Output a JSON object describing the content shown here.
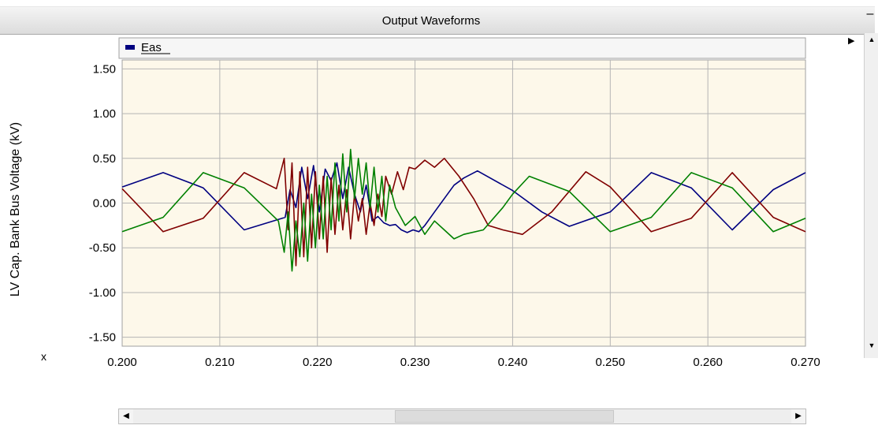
{
  "window": {
    "title": "Output Waveforms",
    "minimize_glyph": "–"
  },
  "colors": {
    "plot_background": "#fdf8ea",
    "grid": "#b4b4b4",
    "phase_a": "#000080",
    "phase_b": "#800000",
    "phase_c": "#008000"
  },
  "chart_data": {
    "type": "line",
    "title": "",
    "xlabel": "x",
    "ylabel": "LV Cap. Bank Bus Voltage (kV)",
    "xlim": [
      0.2,
      0.27
    ],
    "ylim": [
      -1.6,
      1.6
    ],
    "x_ticks": [
      "0.200",
      "0.210",
      "0.220",
      "0.230",
      "0.240",
      "0.250",
      "0.260",
      "0.270"
    ],
    "y_ticks": [
      "1.50",
      "1.00",
      "0.50",
      "0.00",
      "-0.50",
      "-1.00",
      "-1.50"
    ],
    "grid": true,
    "legend": {
      "position": "top-left",
      "entries": [
        "Eas"
      ]
    },
    "series": [
      {
        "name": "Eas",
        "color": "#000080",
        "x": [
          0.2,
          0.2042,
          0.2083,
          0.2125,
          0.2167,
          0.2172,
          0.2178,
          0.2184,
          0.219,
          0.2196,
          0.2202,
          0.2208,
          0.2214,
          0.222,
          0.2226,
          0.2232,
          0.2238,
          0.2244,
          0.225,
          0.2256,
          0.2262,
          0.2268,
          0.2274,
          0.228,
          0.2286,
          0.2292,
          0.2298,
          0.2304,
          0.231,
          0.232,
          0.233,
          0.234,
          0.235,
          0.2364,
          0.24,
          0.243,
          0.2458,
          0.25,
          0.2542,
          0.2583,
          0.2625,
          0.2667,
          0.27
        ],
        "y": [
          0.18,
          0.34,
          0.17,
          -0.3,
          -0.16,
          0.15,
          -0.05,
          0.4,
          0.05,
          0.42,
          -0.1,
          0.38,
          0.25,
          0.45,
          0.05,
          0.4,
          0.1,
          -0.1,
          0.2,
          -0.2,
          -0.15,
          -0.22,
          -0.25,
          -0.24,
          -0.3,
          -0.33,
          -0.3,
          -0.32,
          -0.25,
          -0.1,
          0.05,
          0.2,
          0.28,
          0.36,
          0.14,
          -0.1,
          -0.26,
          -0.1,
          0.34,
          0.17,
          -0.3,
          0.15,
          0.34
        ]
      },
      {
        "name": "",
        "color": "#800000",
        "x": [
          0.2,
          0.2042,
          0.2083,
          0.2125,
          0.2158,
          0.2166,
          0.217,
          0.2174,
          0.2178,
          0.2182,
          0.2186,
          0.219,
          0.2194,
          0.2198,
          0.2202,
          0.2206,
          0.221,
          0.2214,
          0.2218,
          0.2222,
          0.2226,
          0.223,
          0.2234,
          0.2238,
          0.2242,
          0.2246,
          0.225,
          0.2254,
          0.2258,
          0.2262,
          0.2266,
          0.227,
          0.2276,
          0.2282,
          0.2288,
          0.2294,
          0.23,
          0.231,
          0.232,
          0.233,
          0.2345,
          0.236,
          0.2375,
          0.239,
          0.241,
          0.244,
          0.2475,
          0.25,
          0.2542,
          0.2583,
          0.2625,
          0.2667,
          0.27
        ],
        "y": [
          0.16,
          -0.32,
          -0.17,
          0.34,
          0.16,
          0.5,
          -0.3,
          0.45,
          -0.7,
          0.35,
          -0.6,
          0.4,
          -0.5,
          0.35,
          -0.4,
          0.3,
          -0.55,
          0.28,
          -0.35,
          0.2,
          -0.3,
          0.15,
          -0.4,
          0.1,
          -0.2,
          0.05,
          -0.35,
          0.0,
          -0.25,
          0.1,
          -0.15,
          0.3,
          0.1,
          0.35,
          0.15,
          0.4,
          0.38,
          0.48,
          0.4,
          0.5,
          0.3,
          0.05,
          -0.25,
          -0.3,
          -0.35,
          -0.1,
          0.35,
          0.18,
          -0.32,
          -0.17,
          0.34,
          -0.16,
          -0.32
        ]
      },
      {
        "name": "",
        "color": "#008000",
        "x": [
          0.2,
          0.2042,
          0.2083,
          0.2125,
          0.216,
          0.2166,
          0.217,
          0.2174,
          0.2178,
          0.2182,
          0.2186,
          0.219,
          0.2194,
          0.2198,
          0.2202,
          0.2206,
          0.221,
          0.2214,
          0.2218,
          0.2222,
          0.2226,
          0.223,
          0.2234,
          0.2238,
          0.2242,
          0.2246,
          0.225,
          0.2254,
          0.2258,
          0.2262,
          0.2266,
          0.227,
          0.2274,
          0.228,
          0.229,
          0.23,
          0.231,
          0.232,
          0.233,
          0.234,
          0.235,
          0.237,
          0.239,
          0.24,
          0.2417,
          0.2458,
          0.25,
          0.2542,
          0.2583,
          0.2625,
          0.2667,
          0.27
        ],
        "y": [
          -0.32,
          -0.16,
          0.34,
          0.17,
          -0.2,
          -0.55,
          -0.1,
          -0.76,
          -0.2,
          -0.6,
          0.0,
          -0.65,
          0.1,
          -0.5,
          0.2,
          -0.4,
          0.3,
          -0.3,
          0.45,
          -0.2,
          0.55,
          -0.1,
          0.6,
          0.05,
          0.5,
          0.1,
          0.45,
          -0.05,
          0.4,
          -0.1,
          0.3,
          -0.2,
          0.2,
          -0.05,
          -0.25,
          -0.15,
          -0.35,
          -0.2,
          -0.3,
          -0.4,
          -0.35,
          -0.3,
          -0.05,
          0.1,
          0.3,
          0.13,
          -0.32,
          -0.16,
          0.34,
          0.17,
          -0.32,
          -0.17
        ]
      }
    ]
  }
}
